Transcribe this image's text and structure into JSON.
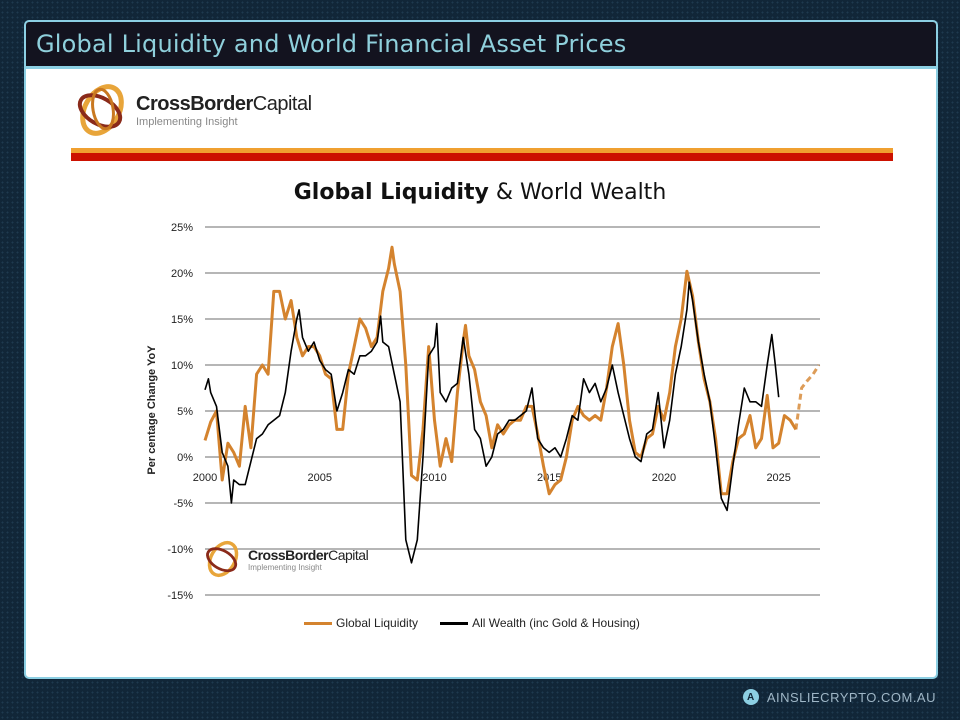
{
  "header": {
    "title": "Global Liquidity and World Financial Asset Prices"
  },
  "logo": {
    "name_bold": "CrossBorder",
    "name_light": "Capital",
    "tagline": "Implementing Insight"
  },
  "watermark": {
    "name_bold": "CrossBorder",
    "name_light": "Capital",
    "tagline": "Implementing Insight"
  },
  "footer": {
    "text": "AINSLIECRYPTO.COM.AU",
    "icon": "ainslie-logo-icon"
  },
  "colors": {
    "liquidity": "#d4832e",
    "wealth": "#000000",
    "brand_orange": "#f0a030",
    "brand_red": "#cc1100",
    "frame": "#8ccfe3"
  },
  "chart_data": {
    "type": "line",
    "title_bold": "Global Liquidity",
    "title_rest": "& World Wealth",
    "xlabel": "",
    "ylabel": "Per centage Change YoY",
    "xlim": [
      2000,
      2026.8
    ],
    "ylim": [
      -15,
      25
    ],
    "yticks": [
      25,
      20,
      15,
      10,
      5,
      0,
      -5,
      -10,
      -15
    ],
    "ytick_labels": [
      "25%",
      "20%",
      "15%",
      "10%",
      "5%",
      "0%",
      "-5%",
      "-10%",
      "-15%"
    ],
    "xticks": [
      2000,
      2005,
      2010,
      2015,
      2020,
      2025
    ],
    "xtick_labels": [
      "2000",
      "2005",
      "2010",
      "2015",
      "2020",
      "2025"
    ],
    "grid": "horizontal",
    "legend": "bottom",
    "series": [
      {
        "name": "Global Liquidity",
        "color": "#d4832e",
        "points": [
          [
            2000,
            1.8
          ],
          [
            2000.25,
            3.8
          ],
          [
            2000.5,
            5
          ],
          [
            2000.75,
            -2.5
          ],
          [
            2001,
            1.5
          ],
          [
            2001.25,
            0.5
          ],
          [
            2001.5,
            -1
          ],
          [
            2001.75,
            5.5
          ],
          [
            2002,
            1
          ],
          [
            2002.25,
            9
          ],
          [
            2002.5,
            10
          ],
          [
            2002.75,
            9
          ],
          [
            2003,
            18
          ],
          [
            2003.25,
            18
          ],
          [
            2003.5,
            15
          ],
          [
            2003.75,
            17
          ],
          [
            2004,
            13
          ],
          [
            2004.25,
            11
          ],
          [
            2004.5,
            12
          ],
          [
            2004.75,
            12
          ],
          [
            2005,
            11
          ],
          [
            2005.25,
            9
          ],
          [
            2005.5,
            8.5
          ],
          [
            2005.75,
            3
          ],
          [
            2006,
            3
          ],
          [
            2006.25,
            9
          ],
          [
            2006.5,
            12
          ],
          [
            2006.75,
            15
          ],
          [
            2007,
            14
          ],
          [
            2007.25,
            12
          ],
          [
            2007.5,
            13
          ],
          [
            2007.75,
            18
          ],
          [
            2008,
            20.5
          ],
          [
            2008.15,
            22.8
          ],
          [
            2008.25,
            21
          ],
          [
            2008.5,
            18
          ],
          [
            2008.75,
            10
          ],
          [
            2009,
            -2
          ],
          [
            2009.25,
            -2.5
          ],
          [
            2009.5,
            3
          ],
          [
            2009.75,
            12
          ],
          [
            2010,
            4
          ],
          [
            2010.25,
            -1
          ],
          [
            2010.5,
            2
          ],
          [
            2010.75,
            -0.5
          ],
          [
            2011,
            7
          ],
          [
            2011.25,
            12.5
          ],
          [
            2011.35,
            14.3
          ],
          [
            2011.5,
            11
          ],
          [
            2011.75,
            9.5
          ],
          [
            2012,
            6
          ],
          [
            2012.25,
            4.5
          ],
          [
            2012.5,
            1
          ],
          [
            2012.75,
            3.5
          ],
          [
            2013,
            2.5
          ],
          [
            2013.25,
            3.5
          ],
          [
            2013.5,
            4
          ],
          [
            2013.75,
            4
          ],
          [
            2014,
            5.5
          ],
          [
            2014.25,
            5.5
          ],
          [
            2014.5,
            2.5
          ],
          [
            2014.75,
            -1
          ],
          [
            2015,
            -4
          ],
          [
            2015.25,
            -3
          ],
          [
            2015.5,
            -2.5
          ],
          [
            2015.75,
            0
          ],
          [
            2016,
            4
          ],
          [
            2016.25,
            5.5
          ],
          [
            2016.5,
            4.5
          ],
          [
            2016.75,
            4
          ],
          [
            2017,
            4.5
          ],
          [
            2017.25,
            4
          ],
          [
            2017.5,
            7.5
          ],
          [
            2017.75,
            12
          ],
          [
            2018,
            14.5
          ],
          [
            2018.25,
            10
          ],
          [
            2018.5,
            4
          ],
          [
            2018.75,
            0.5
          ],
          [
            2019,
            0
          ],
          [
            2019.25,
            2
          ],
          [
            2019.5,
            2.5
          ],
          [
            2019.75,
            5.5
          ],
          [
            2020,
            4
          ],
          [
            2020.25,
            7
          ],
          [
            2020.5,
            12
          ],
          [
            2020.75,
            15
          ],
          [
            2021,
            20.2
          ],
          [
            2021.25,
            17.5
          ],
          [
            2021.5,
            12.5
          ],
          [
            2021.75,
            8.5
          ],
          [
            2022,
            6
          ],
          [
            2022.25,
            2
          ],
          [
            2022.5,
            -4
          ],
          [
            2022.75,
            -4
          ],
          [
            2023,
            -0.5
          ],
          [
            2023.25,
            2
          ],
          [
            2023.5,
            2.5
          ],
          [
            2023.75,
            4.5
          ],
          [
            2024,
            1
          ],
          [
            2024.25,
            2
          ],
          [
            2024.5,
            6.7
          ],
          [
            2024.75,
            1
          ],
          [
            2025,
            1.5
          ],
          [
            2025.25,
            4.5
          ],
          [
            2025.5,
            4
          ],
          [
            2025.75,
            3
          ]
        ]
      },
      {
        "name": "Global Liquidity (projection)",
        "legend": false,
        "color": "#d4832e",
        "dashed": true,
        "points": [
          [
            2025.75,
            3
          ],
          [
            2026,
            7.5
          ],
          [
            2026.25,
            8.3
          ],
          [
            2026.5,
            9
          ],
          [
            2026.75,
            10
          ]
        ]
      },
      {
        "name": "All Wealth (inc Gold & Housing)",
        "color": "#000000",
        "points": [
          [
            2000,
            7.3
          ],
          [
            2000.15,
            8.5
          ],
          [
            2000.25,
            7
          ],
          [
            2000.5,
            5.5
          ],
          [
            2000.75,
            0.5
          ],
          [
            2001,
            -1
          ],
          [
            2001.15,
            -5
          ],
          [
            2001.25,
            -2.5
          ],
          [
            2001.5,
            -3
          ],
          [
            2001.75,
            -3
          ],
          [
            2002,
            -0.5
          ],
          [
            2002.25,
            2
          ],
          [
            2002.5,
            2.5
          ],
          [
            2002.75,
            3.5
          ],
          [
            2003,
            4
          ],
          [
            2003.25,
            4.5
          ],
          [
            2003.5,
            7
          ],
          [
            2003.75,
            11.5
          ],
          [
            2004,
            15
          ],
          [
            2004.1,
            16
          ],
          [
            2004.25,
            13
          ],
          [
            2004.5,
            11.5
          ],
          [
            2004.75,
            12.5
          ],
          [
            2005,
            10.5
          ],
          [
            2005.25,
            9.5
          ],
          [
            2005.5,
            9
          ],
          [
            2005.75,
            5
          ],
          [
            2006,
            7
          ],
          [
            2006.25,
            9.5
          ],
          [
            2006.5,
            9
          ],
          [
            2006.75,
            11
          ],
          [
            2007,
            11
          ],
          [
            2007.25,
            11.5
          ],
          [
            2007.5,
            12.5
          ],
          [
            2007.65,
            15.3
          ],
          [
            2007.75,
            12.5
          ],
          [
            2008,
            12
          ],
          [
            2008.25,
            9
          ],
          [
            2008.5,
            6
          ],
          [
            2008.75,
            -9
          ],
          [
            2009,
            -11.5
          ],
          [
            2009.25,
            -9
          ],
          [
            2009.5,
            0
          ],
          [
            2009.75,
            11
          ],
          [
            2010,
            12
          ],
          [
            2010.1,
            14.5
          ],
          [
            2010.25,
            7
          ],
          [
            2010.5,
            6
          ],
          [
            2010.75,
            7.5
          ],
          [
            2011,
            8
          ],
          [
            2011.25,
            13
          ],
          [
            2011.5,
            9
          ],
          [
            2011.75,
            3
          ],
          [
            2012,
            2
          ],
          [
            2012.25,
            -1
          ],
          [
            2012.5,
            0
          ],
          [
            2012.75,
            2.5
          ],
          [
            2013,
            3
          ],
          [
            2013.25,
            4
          ],
          [
            2013.5,
            4
          ],
          [
            2013.75,
            4.5
          ],
          [
            2014,
            5
          ],
          [
            2014.25,
            7.5
          ],
          [
            2014.5,
            2
          ],
          [
            2014.75,
            1
          ],
          [
            2015,
            0.5
          ],
          [
            2015.25,
            1
          ],
          [
            2015.5,
            0
          ],
          [
            2015.75,
            2
          ],
          [
            2016,
            4.5
          ],
          [
            2016.25,
            4
          ],
          [
            2016.5,
            8.5
          ],
          [
            2016.75,
            7
          ],
          [
            2017,
            8
          ],
          [
            2017.25,
            6
          ],
          [
            2017.5,
            7.5
          ],
          [
            2017.75,
            10
          ],
          [
            2018,
            7
          ],
          [
            2018.25,
            4.5
          ],
          [
            2018.5,
            2
          ],
          [
            2018.75,
            0
          ],
          [
            2019,
            -0.5
          ],
          [
            2019.25,
            2.5
          ],
          [
            2019.5,
            3
          ],
          [
            2019.75,
            7
          ],
          [
            2020,
            1
          ],
          [
            2020.25,
            4
          ],
          [
            2020.5,
            9
          ],
          [
            2020.75,
            12
          ],
          [
            2021,
            16
          ],
          [
            2021.1,
            19
          ],
          [
            2021.25,
            17
          ],
          [
            2021.5,
            12.5
          ],
          [
            2021.75,
            9
          ],
          [
            2022,
            6
          ],
          [
            2022.25,
            1
          ],
          [
            2022.5,
            -4.5
          ],
          [
            2022.75,
            -5.8
          ],
          [
            2023,
            -1
          ],
          [
            2023.25,
            3.5
          ],
          [
            2023.5,
            7.5
          ],
          [
            2023.75,
            6
          ],
          [
            2024,
            6
          ],
          [
            2024.25,
            5.5
          ],
          [
            2024.5,
            10
          ],
          [
            2024.7,
            13.3
          ],
          [
            2024.85,
            10
          ],
          [
            2025,
            6.5
          ]
        ]
      }
    ]
  }
}
